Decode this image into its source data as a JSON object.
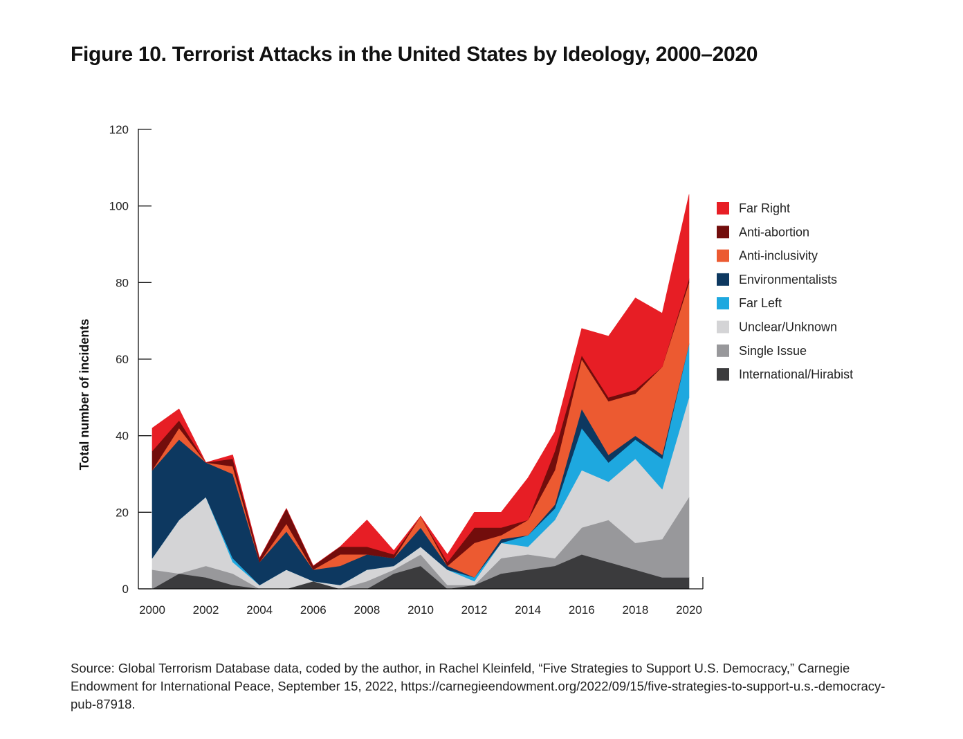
{
  "chart_data": {
    "type": "area",
    "stacked": true,
    "title": "Figure 10. Terrorist Attacks in the United States by Ideology, 2000–2020",
    "ylabel": "Total number of incidents",
    "xlabel": "",
    "ylim": [
      0,
      120
    ],
    "y_ticks": [
      "0",
      "20",
      "40",
      "60",
      "80",
      "100",
      "120"
    ],
    "x_ticks": [
      "2000",
      "2002",
      "2004",
      "2006",
      "2008",
      "2010",
      "2012",
      "2014",
      "2016",
      "2018",
      "2020"
    ],
    "x": [
      2000,
      2001,
      2002,
      2003,
      2004,
      2005,
      2006,
      2007,
      2008,
      2009,
      2010,
      2011,
      2012,
      2013,
      2014,
      2015,
      2016,
      2017,
      2018,
      2019,
      2020
    ],
    "legend_position": "right",
    "grid": false,
    "series": [
      {
        "name": "International/Hirabist",
        "color": "#3b3b3d",
        "values": [
          0,
          4,
          3,
          1,
          0,
          0,
          2,
          0,
          0,
          4,
          6,
          0,
          1,
          4,
          5,
          6,
          9,
          7,
          5,
          3,
          3
        ]
      },
      {
        "name": "Single Issue",
        "color": "#98989b",
        "values": [
          5,
          0,
          3,
          3,
          0,
          0,
          0,
          0,
          2,
          1,
          3,
          1,
          0,
          4,
          4,
          2,
          7,
          11,
          7,
          10,
          21
        ]
      },
      {
        "name": "Unclear/Unknown",
        "color": "#d4d4d6",
        "values": [
          3,
          14,
          18,
          3,
          1,
          5,
          0,
          1,
          3,
          1,
          2,
          4,
          1,
          4,
          2,
          10,
          15,
          10,
          22,
          13,
          26
        ]
      },
      {
        "name": "Far Left",
        "color": "#1ea8df",
        "values": [
          0,
          0,
          0,
          1,
          0,
          0,
          0,
          0,
          0,
          0,
          0,
          0,
          1,
          0,
          3,
          3,
          11,
          5,
          5,
          8,
          14
        ]
      },
      {
        "name": "Environmentalists",
        "color": "#0d3860",
        "values": [
          23,
          21,
          9,
          22,
          6,
          10,
          3,
          5,
          4,
          2,
          5,
          1,
          0,
          1,
          0,
          1,
          5,
          2,
          1,
          1,
          0
        ]
      },
      {
        "name": "Anti-inclusivity",
        "color": "#ec5a31",
        "values": [
          0,
          3,
          0,
          2,
          0,
          2,
          0,
          3,
          0,
          0,
          3,
          0,
          9,
          1,
          4,
          9,
          13,
          14,
          11,
          23,
          16
        ]
      },
      {
        "name": "Anti-abortion",
        "color": "#720d0c",
        "values": [
          5,
          2,
          0,
          2,
          1,
          4,
          1,
          2,
          2,
          1,
          0,
          1,
          4,
          2,
          0,
          5,
          1,
          1,
          1,
          0,
          1
        ]
      },
      {
        "name": "Far Right",
        "color": "#e71e25",
        "values": [
          6,
          3,
          0,
          1,
          0,
          0,
          0,
          0,
          7,
          1,
          0,
          2,
          4,
          4,
          11,
          5,
          7,
          16,
          24,
          14,
          22
        ]
      }
    ],
    "legend_order": [
      "Far Right",
      "Anti-abortion",
      "Anti-inclusivity",
      "Environmentalists",
      "Far Left",
      "Unclear/Unknown",
      "Single Issue",
      "International/Hirabist"
    ]
  },
  "source_note": "Source: Global Terrorism Database data, coded by the author, in Rachel Kleinfeld, “Five Strategies to Support U.S. Democracy,” Carnegie Endowment for International Peace, September 15, 2022, https://carnegieendowment.org/2022/09/15/five-strategies-to-support-u.s.-democracy-pub-87918."
}
